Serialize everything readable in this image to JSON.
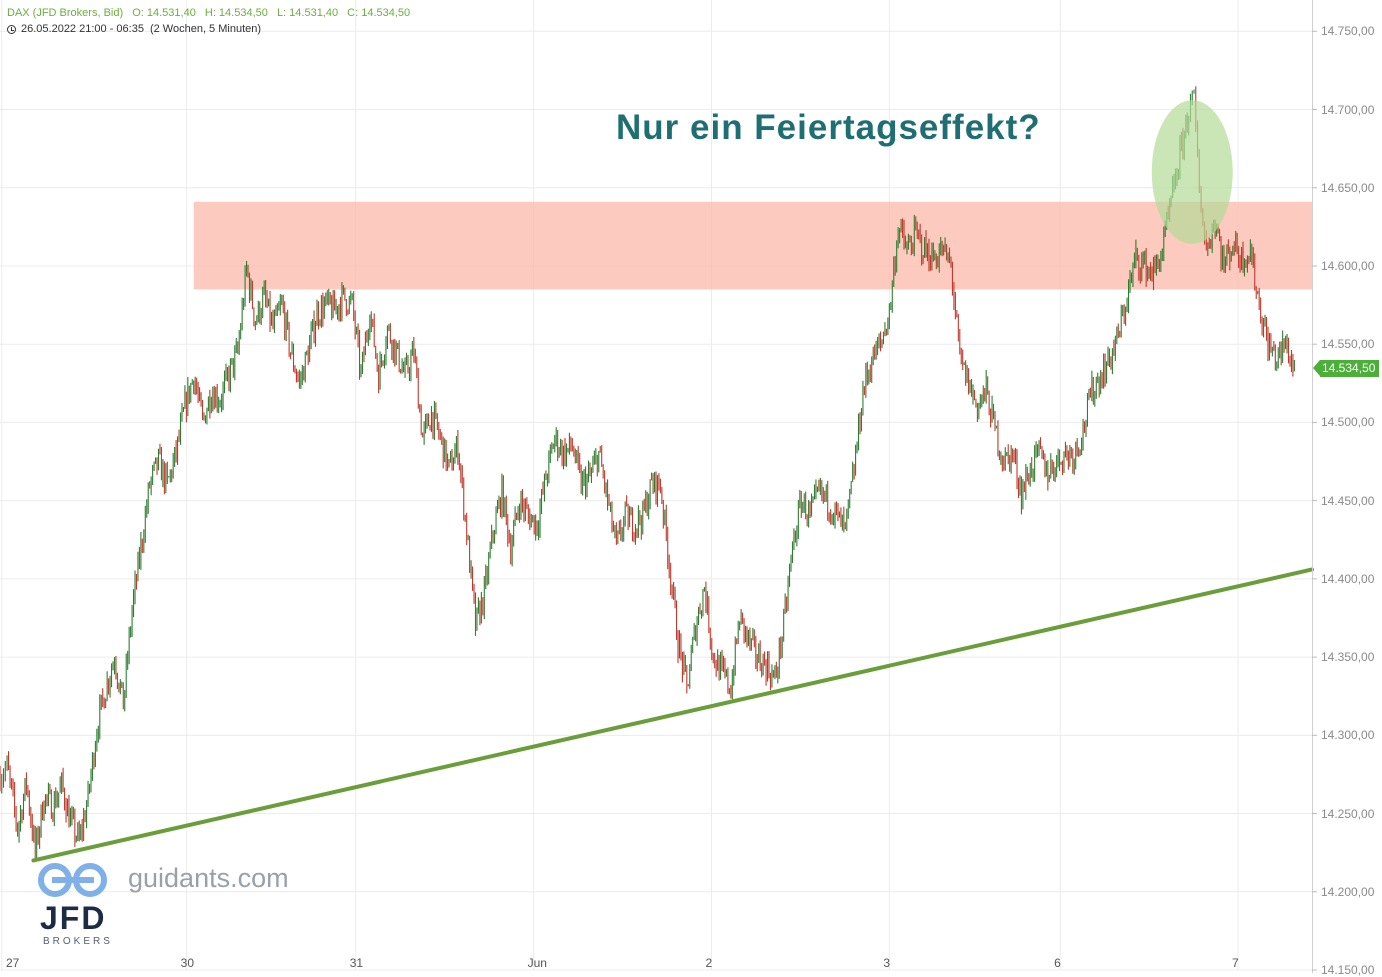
{
  "header": {
    "symbol": "DAX (JFD Brokers, Bid)",
    "open": "O: 14.531,40",
    "high": "H: 14.534,50",
    "low": "L: 14.531,40",
    "close": "C: 14.534,50",
    "range": "26.05.2022 21:00 - 06:35",
    "period": "(2 Wochen, 5 Minuten)"
  },
  "annotation": {
    "text": "Nur ein Feiertagseffekt?"
  },
  "watermark": {
    "site": "guidants.com",
    "broker_logo": "JFD",
    "broker_sub": "BROKERS"
  },
  "current_price": {
    "label": "14.534,50",
    "value": 14534.5,
    "color": "#4caf3a"
  },
  "colors": {
    "up": "#2e7d32",
    "down": "#c0392b",
    "zone": "#fbb8a8",
    "trendline": "#6a9e3a",
    "highlight": "#b4dc98"
  },
  "chart_data": {
    "type": "line",
    "title": "",
    "xlabel": "",
    "ylabel": "",
    "ylim": [
      14150,
      14770
    ],
    "y_ticks": [
      14150,
      14200,
      14250,
      14300,
      14350,
      14400,
      14450,
      14500,
      14550,
      14600,
      14650,
      14700,
      14750
    ],
    "y_tick_labels": [
      "14.150,00",
      "14.200,00",
      "14.250,00",
      "14.300,00",
      "14.350,00",
      "14.400,00",
      "14.450,00",
      "14.500,00",
      "14.550,00",
      "14.600,00",
      "14.650,00",
      "14.700,00",
      "14.750,00"
    ],
    "x_ticks": [
      {
        "label": "27",
        "t": 0.1
      },
      {
        "label": "30",
        "t": 10.6
      },
      {
        "label": "31",
        "t": 20.2
      },
      {
        "label": "Jun",
        "t": 30.3
      },
      {
        "label": "2",
        "t": 40.4
      },
      {
        "label": "3",
        "t": 50.5
      },
      {
        "label": "6",
        "t": 60.2
      },
      {
        "label": "7",
        "t": 70.3
      }
    ],
    "x_range": [
      0,
      74.5
    ],
    "grid": true,
    "series": [
      {
        "points": [
          [
            0.0,
            14275
          ],
          [
            0.4,
            14280
          ],
          [
            1.0,
            14240
          ],
          [
            1.5,
            14270
          ],
          [
            2.0,
            14225
          ],
          [
            2.5,
            14260
          ],
          [
            3.0,
            14255
          ],
          [
            3.5,
            14268
          ],
          [
            4.0,
            14245
          ],
          [
            4.5,
            14232
          ],
          [
            5.0,
            14260
          ],
          [
            5.5,
            14305
          ],
          [
            6.0,
            14330
          ],
          [
            6.5,
            14350
          ],
          [
            7.0,
            14320
          ],
          [
            7.5,
            14380
          ],
          [
            8.0,
            14420
          ],
          [
            8.5,
            14460
          ],
          [
            9.0,
            14475
          ],
          [
            9.5,
            14460
          ],
          [
            10.0,
            14480
          ],
          [
            10.5,
            14510
          ],
          [
            11.0,
            14530
          ],
          [
            11.5,
            14500
          ],
          [
            12.0,
            14520
          ],
          [
            12.5,
            14515
          ],
          [
            13.0,
            14530
          ],
          [
            13.5,
            14545
          ],
          [
            14.0,
            14598
          ],
          [
            14.5,
            14565
          ],
          [
            15.0,
            14580
          ],
          [
            15.5,
            14560
          ],
          [
            16.0,
            14575
          ],
          [
            16.5,
            14545
          ],
          [
            17.0,
            14525
          ],
          [
            17.5,
            14545
          ],
          [
            18.0,
            14570
          ],
          [
            18.5,
            14575
          ],
          [
            19.0,
            14572
          ],
          [
            19.5,
            14580
          ],
          [
            20.0,
            14575
          ],
          [
            20.5,
            14530
          ],
          [
            21.0,
            14572
          ],
          [
            21.5,
            14530
          ],
          [
            22.0,
            14560
          ],
          [
            22.5,
            14545
          ],
          [
            23.0,
            14530
          ],
          [
            23.5,
            14545
          ],
          [
            24.0,
            14490
          ],
          [
            24.5,
            14505
          ],
          [
            25.0,
            14490
          ],
          [
            25.5,
            14470
          ],
          [
            26.0,
            14485
          ],
          [
            26.5,
            14430
          ],
          [
            27.0,
            14370
          ],
          [
            27.5,
            14390
          ],
          [
            28.0,
            14430
          ],
          [
            28.5,
            14455
          ],
          [
            29.0,
            14420
          ],
          [
            29.5,
            14450
          ],
          [
            30.0,
            14440
          ],
          [
            30.5,
            14435
          ],
          [
            31.0,
            14465
          ],
          [
            31.5,
            14490
          ],
          [
            32.0,
            14480
          ],
          [
            32.5,
            14485
          ],
          [
            33.0,
            14460
          ],
          [
            33.5,
            14465
          ],
          [
            34.0,
            14480
          ],
          [
            34.5,
            14450
          ],
          [
            35.0,
            14420
          ],
          [
            35.5,
            14440
          ],
          [
            36.0,
            14435
          ],
          [
            36.5,
            14440
          ],
          [
            37.0,
            14460
          ],
          [
            37.5,
            14460
          ],
          [
            38.0,
            14410
          ],
          [
            38.5,
            14360
          ],
          [
            39.0,
            14330
          ],
          [
            39.5,
            14370
          ],
          [
            40.0,
            14395
          ],
          [
            40.5,
            14350
          ],
          [
            41.0,
            14340
          ],
          [
            41.5,
            14330
          ],
          [
            42.0,
            14375
          ],
          [
            42.5,
            14360
          ],
          [
            43.0,
            14350
          ],
          [
            43.5,
            14345
          ],
          [
            44.0,
            14335
          ],
          [
            44.5,
            14370
          ],
          [
            45.0,
            14420
          ],
          [
            45.5,
            14450
          ],
          [
            46.0,
            14440
          ],
          [
            46.5,
            14455
          ],
          [
            47.0,
            14450
          ],
          [
            47.5,
            14440
          ],
          [
            48.0,
            14430
          ],
          [
            48.5,
            14470
          ],
          [
            49.0,
            14520
          ],
          [
            49.5,
            14540
          ],
          [
            50.0,
            14550
          ],
          [
            50.5,
            14570
          ],
          [
            51.0,
            14625
          ],
          [
            51.5,
            14610
          ],
          [
            52.0,
            14620
          ],
          [
            52.5,
            14610
          ],
          [
            53.0,
            14605
          ],
          [
            53.5,
            14610
          ],
          [
            54.0,
            14600
          ],
          [
            54.5,
            14540
          ],
          [
            55.0,
            14525
          ],
          [
            55.5,
            14510
          ],
          [
            56.0,
            14520
          ],
          [
            56.5,
            14495
          ],
          [
            57.0,
            14475
          ],
          [
            57.5,
            14480
          ],
          [
            58.0,
            14455
          ],
          [
            58.5,
            14470
          ],
          [
            59.0,
            14480
          ],
          [
            59.5,
            14468
          ],
          [
            60.0,
            14475
          ],
          [
            60.5,
            14480
          ],
          [
            61.0,
            14480
          ],
          [
            61.5,
            14495
          ],
          [
            62.0,
            14520
          ],
          [
            62.5,
            14530
          ],
          [
            63.0,
            14540
          ],
          [
            63.5,
            14555
          ],
          [
            64.0,
            14580
          ],
          [
            64.5,
            14605
          ],
          [
            65.0,
            14600
          ],
          [
            65.5,
            14595
          ],
          [
            66.0,
            14610
          ],
          [
            66.5,
            14640
          ],
          [
            67.0,
            14670
          ],
          [
            67.5,
            14700
          ],
          [
            67.8,
            14705
          ],
          [
            68.1,
            14650
          ],
          [
            68.5,
            14610
          ],
          [
            69.0,
            14630
          ],
          [
            69.5,
            14600
          ],
          [
            70.0,
            14615
          ],
          [
            70.5,
            14605
          ],
          [
            71.0,
            14610
          ],
          [
            71.5,
            14575
          ],
          [
            72.0,
            14550
          ],
          [
            72.5,
            14540
          ],
          [
            73.0,
            14550
          ],
          [
            73.5,
            14534.5
          ]
        ]
      }
    ],
    "zone": {
      "from": 14585,
      "to": 14641,
      "x_start": 11.0
    },
    "trendline": {
      "from": [
        1.9,
        14220
      ],
      "to": [
        74.5,
        14406
      ]
    },
    "highlight": {
      "x_center": 67.7,
      "y_center": 14660,
      "x_radius": 2.3,
      "y_radius": 46
    }
  }
}
